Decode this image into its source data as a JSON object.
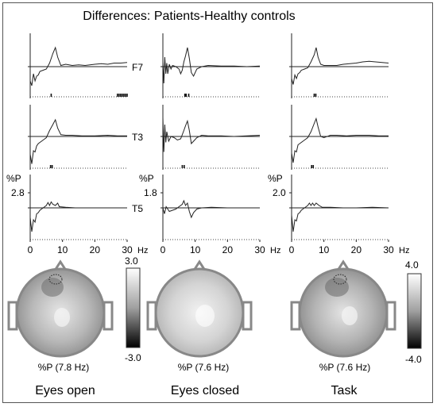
{
  "title": "Differences: Patients-Healthy controls",
  "chart_data": {
    "type": "line",
    "x_unit": "Hz",
    "x_range": [
      0,
      30
    ],
    "x_ticks": [
      0,
      10,
      20,
      30
    ],
    "y_unit": "%P",
    "channels": [
      "F7",
      "T3",
      "T5"
    ],
    "columns": [
      {
        "condition": "Eyes open",
        "scale_label": "2.8",
        "peak_label": "%P (7.8 Hz)",
        "colorbar": {
          "max": "3.0",
          "min": "-3.0"
        },
        "series": {
          "F7": [
            [
              0,
              -1.2
            ],
            [
              0.5,
              -1.6
            ],
            [
              1,
              -0.6
            ],
            [
              1.5,
              -1.2
            ],
            [
              2,
              -0.8
            ],
            [
              2.5,
              -0.7
            ],
            [
              3,
              -0.4
            ],
            [
              4,
              -0.3
            ],
            [
              5,
              -0.2
            ],
            [
              6,
              0.3
            ],
            [
              7,
              1.1
            ],
            [
              7.8,
              1.6
            ],
            [
              8.5,
              0.8
            ],
            [
              9.5,
              0.1
            ],
            [
              11,
              0.2
            ],
            [
              13,
              0.1
            ],
            [
              15,
              0.15
            ],
            [
              17,
              0.1
            ],
            [
              20,
              0.2
            ],
            [
              22,
              0.25
            ],
            [
              24,
              0.2
            ],
            [
              26,
              0.3
            ],
            [
              28,
              0.3
            ],
            [
              30,
              0.35
            ]
          ],
          "T3": [
            [
              0,
              -1.5
            ],
            [
              0.5,
              -2.3
            ],
            [
              1,
              -1.2
            ],
            [
              1.5,
              -1.3
            ],
            [
              2,
              -0.8
            ],
            [
              2.5,
              -0.6
            ],
            [
              3,
              -0.5
            ],
            [
              4,
              -0.3
            ],
            [
              5,
              -0.1
            ],
            [
              6,
              0.5
            ],
            [
              7,
              1.0
            ],
            [
              7.8,
              1.4
            ],
            [
              8.5,
              0.7
            ],
            [
              9.5,
              0.15
            ],
            [
              11,
              0.1
            ],
            [
              13,
              0.1
            ],
            [
              16,
              0.05
            ],
            [
              20,
              0.05
            ],
            [
              24,
              0.1
            ],
            [
              27,
              0.05
            ],
            [
              30,
              0.05
            ]
          ],
          "T5": [
            [
              0,
              -0.8
            ],
            [
              0.5,
              -2.0
            ],
            [
              1,
              -1.0
            ],
            [
              1.5,
              -1.2
            ],
            [
              2,
              -0.5
            ],
            [
              2.5,
              -0.4
            ],
            [
              3,
              -0.2
            ],
            [
              4,
              0.0
            ],
            [
              5,
              0.2
            ],
            [
              5.5,
              0.45
            ],
            [
              6,
              0.2
            ],
            [
              6.5,
              0.5
            ],
            [
              7,
              0.3
            ],
            [
              7.8,
              0.2
            ],
            [
              8.5,
              0.4
            ],
            [
              9,
              0.1
            ],
            [
              11,
              0.05
            ],
            [
              14,
              0.0
            ],
            [
              18,
              0.0
            ],
            [
              22,
              0.0
            ],
            [
              26,
              0.0
            ],
            [
              30,
              0.0
            ]
          ]
        },
        "markers": {
          "F7": [
            6.5,
            27,
            27.5,
            28,
            28.5,
            29,
            29.5,
            30
          ],
          "T3": [
            6.3,
            6.8
          ],
          "T5": []
        }
      },
      {
        "condition": "Eyes closed",
        "scale_label": "1.8",
        "peak_label": "%P (7.6 Hz)",
        "colorbar": null,
        "series": {
          "F7": [
            [
              0,
              0.4
            ],
            [
              0.3,
              -1.4
            ],
            [
              0.6,
              0.8
            ],
            [
              0.9,
              -0.6
            ],
            [
              1.2,
              0.3
            ],
            [
              1.5,
              -0.6
            ],
            [
              2,
              0.2
            ],
            [
              2.5,
              -0.2
            ],
            [
              3,
              0.1
            ],
            [
              4,
              0.0
            ],
            [
              5,
              -0.2
            ],
            [
              5.5,
              -0.6
            ],
            [
              6,
              -0.3
            ],
            [
              6.5,
              0.4
            ],
            [
              7,
              0.9
            ],
            [
              7.6,
              1.6
            ],
            [
              8.2,
              0.7
            ],
            [
              8.8,
              -0.5
            ],
            [
              9.5,
              -0.8
            ],
            [
              10.5,
              -0.2
            ],
            [
              12,
              0.0
            ],
            [
              14,
              0.1
            ],
            [
              18,
              0.05
            ],
            [
              22,
              0.05
            ],
            [
              26,
              0.0
            ],
            [
              30,
              0.05
            ]
          ],
          "T3": [
            [
              0,
              1.6
            ],
            [
              0.3,
              -1.3
            ],
            [
              0.6,
              1.0
            ],
            [
              0.9,
              -0.5
            ],
            [
              1.2,
              0.4
            ],
            [
              1.8,
              -0.4
            ],
            [
              2.5,
              0.0
            ],
            [
              3.5,
              -0.1
            ],
            [
              4.5,
              -0.3
            ],
            [
              5.5,
              -0.2
            ],
            [
              6.5,
              0.5
            ],
            [
              7,
              0.9
            ],
            [
              7.6,
              1.3
            ],
            [
              8.2,
              0.5
            ],
            [
              8.8,
              -0.6
            ],
            [
              9.5,
              -0.4
            ],
            [
              10.5,
              -0.1
            ],
            [
              12,
              0.1
            ],
            [
              14,
              0.05
            ],
            [
              18,
              0.05
            ],
            [
              22,
              0.0
            ],
            [
              26,
              0.05
            ],
            [
              30,
              0.1
            ]
          ],
          "T5": [
            [
              0,
              0.0
            ],
            [
              0.5,
              -0.5
            ],
            [
              1,
              0.1
            ],
            [
              2,
              -0.3
            ],
            [
              3,
              -0.2
            ],
            [
              4,
              -0.1
            ],
            [
              5,
              0.1
            ],
            [
              6,
              0.3
            ],
            [
              6.5,
              0.6
            ],
            [
              7,
              0.2
            ],
            [
              7.6,
              0.4
            ],
            [
              8.2,
              -0.3
            ],
            [
              8.8,
              -0.8
            ],
            [
              9.5,
              -0.4
            ],
            [
              10.5,
              -0.1
            ],
            [
              12,
              0.0
            ],
            [
              15,
              0.05
            ],
            [
              20,
              0.0
            ],
            [
              25,
              0.0
            ],
            [
              30,
              0.0
            ]
          ]
        },
        "markers": {
          "F7": [
            6.8,
            7.2,
            8.0
          ],
          "T3": [
            6.0,
            6.6
          ],
          "T5": []
        }
      },
      {
        "condition": "Task",
        "scale_label": "2.0",
        "peak_label": "%P (7.6 Hz)",
        "colorbar": {
          "max": "4.0",
          "min": "-4.0"
        },
        "series": {
          "F7": [
            [
              0,
              -1.0
            ],
            [
              0.5,
              -1.5
            ],
            [
              1,
              -0.7
            ],
            [
              1.5,
              -1.0
            ],
            [
              2,
              -0.6
            ],
            [
              2.5,
              -0.5
            ],
            [
              3,
              -0.3
            ],
            [
              4,
              -0.2
            ],
            [
              5,
              -0.1
            ],
            [
              6,
              0.4
            ],
            [
              7,
              1.0
            ],
            [
              7.6,
              1.6
            ],
            [
              8.2,
              0.8
            ],
            [
              9,
              0.2
            ],
            [
              10,
              0.1
            ],
            [
              12,
              0.1
            ],
            [
              14,
              0.1
            ],
            [
              16,
              0.2
            ],
            [
              18,
              0.25
            ],
            [
              20,
              0.3
            ],
            [
              22,
              0.4
            ],
            [
              24,
              0.45
            ],
            [
              26,
              0.4
            ],
            [
              28,
              0.35
            ],
            [
              30,
              0.3
            ]
          ],
          "T3": [
            [
              0,
              -1.4
            ],
            [
              0.5,
              -2.2
            ],
            [
              1,
              -1.2
            ],
            [
              1.5,
              -1.3
            ],
            [
              2,
              -0.7
            ],
            [
              2.5,
              -0.6
            ],
            [
              3,
              -0.5
            ],
            [
              4,
              -0.3
            ],
            [
              5,
              -0.1
            ],
            [
              6,
              0.4
            ],
            [
              7,
              1.1
            ],
            [
              7.6,
              1.5
            ],
            [
              8.2,
              0.8
            ],
            [
              9,
              0.0
            ],
            [
              10,
              -0.1
            ],
            [
              12,
              0.1
            ],
            [
              14,
              0.1
            ],
            [
              17,
              0.05
            ],
            [
              20,
              0.1
            ],
            [
              24,
              0.1
            ],
            [
              27,
              0.05
            ],
            [
              30,
              0.05
            ]
          ],
          "T5": [
            [
              0,
              -0.6
            ],
            [
              0.5,
              -2.0
            ],
            [
              1,
              -1.0
            ],
            [
              1.5,
              -1.1
            ],
            [
              2,
              -0.5
            ],
            [
              2.5,
              -0.4
            ],
            [
              3,
              -0.2
            ],
            [
              4,
              0.0
            ],
            [
              5,
              0.2
            ],
            [
              5.5,
              0.4
            ],
            [
              6,
              0.2
            ],
            [
              6.5,
              0.4
            ],
            [
              7,
              0.2
            ],
            [
              7.6,
              0.4
            ],
            [
              8.5,
              0.2
            ],
            [
              9.5,
              0.05
            ],
            [
              12,
              0.05
            ],
            [
              16,
              0.0
            ],
            [
              20,
              0.0
            ],
            [
              25,
              0.05
            ],
            [
              30,
              0.0
            ]
          ]
        },
        "markers": {
          "F7": [
            7.0,
            7.5
          ],
          "T3": [
            6.2,
            6.7
          ],
          "T5": []
        }
      }
    ]
  },
  "scalp_maps": [
    {
      "condition": "Eyes open",
      "label": "%P (7.8 Hz)"
    },
    {
      "condition": "Eyes closed",
      "label": "%P (7.6 Hz)"
    },
    {
      "condition": "Task",
      "label": "%P (7.6 Hz)"
    }
  ],
  "colors": {
    "line": "#222222",
    "frame": "#555555",
    "head_outline": "#888888"
  }
}
